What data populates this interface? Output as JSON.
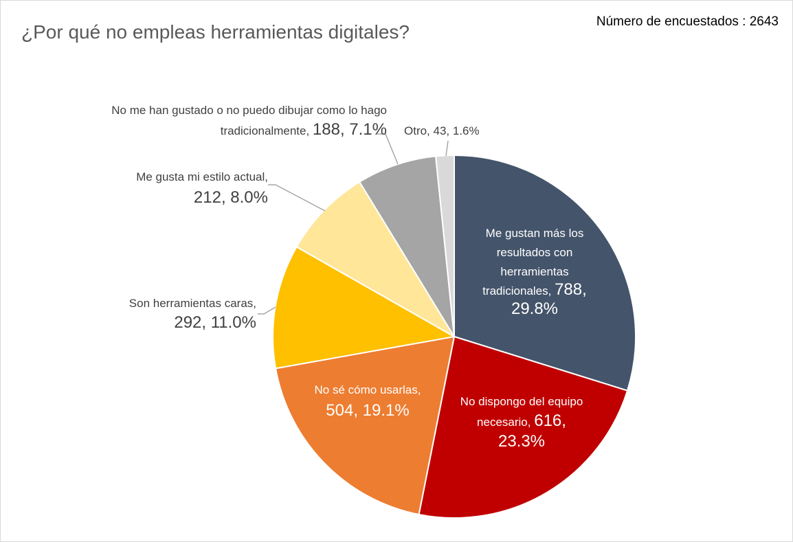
{
  "chart_data": {
    "type": "pie",
    "title": "¿Por qué no empleas herramientas digitales?",
    "annotation": "Número de encuestados : 2643",
    "start_angle_deg": 0,
    "direction": "clockwise",
    "slices": [
      {
        "label": "Me gustan más los resultados con herramientas tradicionales",
        "value": 788,
        "percent": "29.8%",
        "color": "#44546a",
        "text_color": "#ffffff",
        "label_lines": [
          [
            "Me gustan más los",
            ""
          ],
          [
            "resultados con",
            ""
          ],
          [
            "herramientas",
            ""
          ],
          [
            "tradicionales, ",
            "788,"
          ],
          [
            "",
            "29.8%"
          ]
        ]
      },
      {
        "label": "No dispongo del equipo necesario",
        "value": 616,
        "percent": "23.3%",
        "color": "#c00000",
        "text_color": "#ffffff",
        "label_lines": [
          [
            "No dispongo del equipo",
            ""
          ],
          [
            "necesario, ",
            "616,"
          ],
          [
            "",
            "23.3%"
          ]
        ]
      },
      {
        "label": "No sé cómo usarlas",
        "value": 504,
        "percent": "19.1%",
        "color": "#ed7d31",
        "text_color": "#ffffff",
        "label_lines": [
          [
            "No sé cómo usarlas,",
            ""
          ],
          [
            "",
            "504, 19.1%"
          ]
        ]
      },
      {
        "label": "Son herramientas caras",
        "value": 292,
        "percent": "11.0%",
        "color": "#ffc000",
        "text_color": "#404040",
        "label_lines": [
          [
            "Son herramientas caras,",
            ""
          ],
          [
            "",
            "292, 11.0%"
          ]
        ]
      },
      {
        "label": "Me gusta mi estilo actual",
        "value": 212,
        "percent": "8.0%",
        "color": "#ffe699",
        "text_color": "#404040",
        "label_lines": [
          [
            "Me gusta mi estilo actual,",
            ""
          ],
          [
            "",
            "212, 8.0%"
          ]
        ]
      },
      {
        "label": "No me han gustado o no puedo dibujar como lo hago tradicionalmente",
        "value": 188,
        "percent": "7.1%",
        "color": "#a5a5a5",
        "text_color": "#404040",
        "label_lines": [
          [
            "No me han gustado o no puedo dibujar como lo hago",
            ""
          ],
          [
            "tradicionalmente, ",
            "188, 7.1%"
          ]
        ]
      },
      {
        "label": "Otro",
        "value": 43,
        "percent": "1.6%",
        "color": "#d9d9d9",
        "text_color": "#404040",
        "label_lines": [
          [
            "Otro, 43, 1.6%",
            ""
          ]
        ]
      }
    ]
  }
}
